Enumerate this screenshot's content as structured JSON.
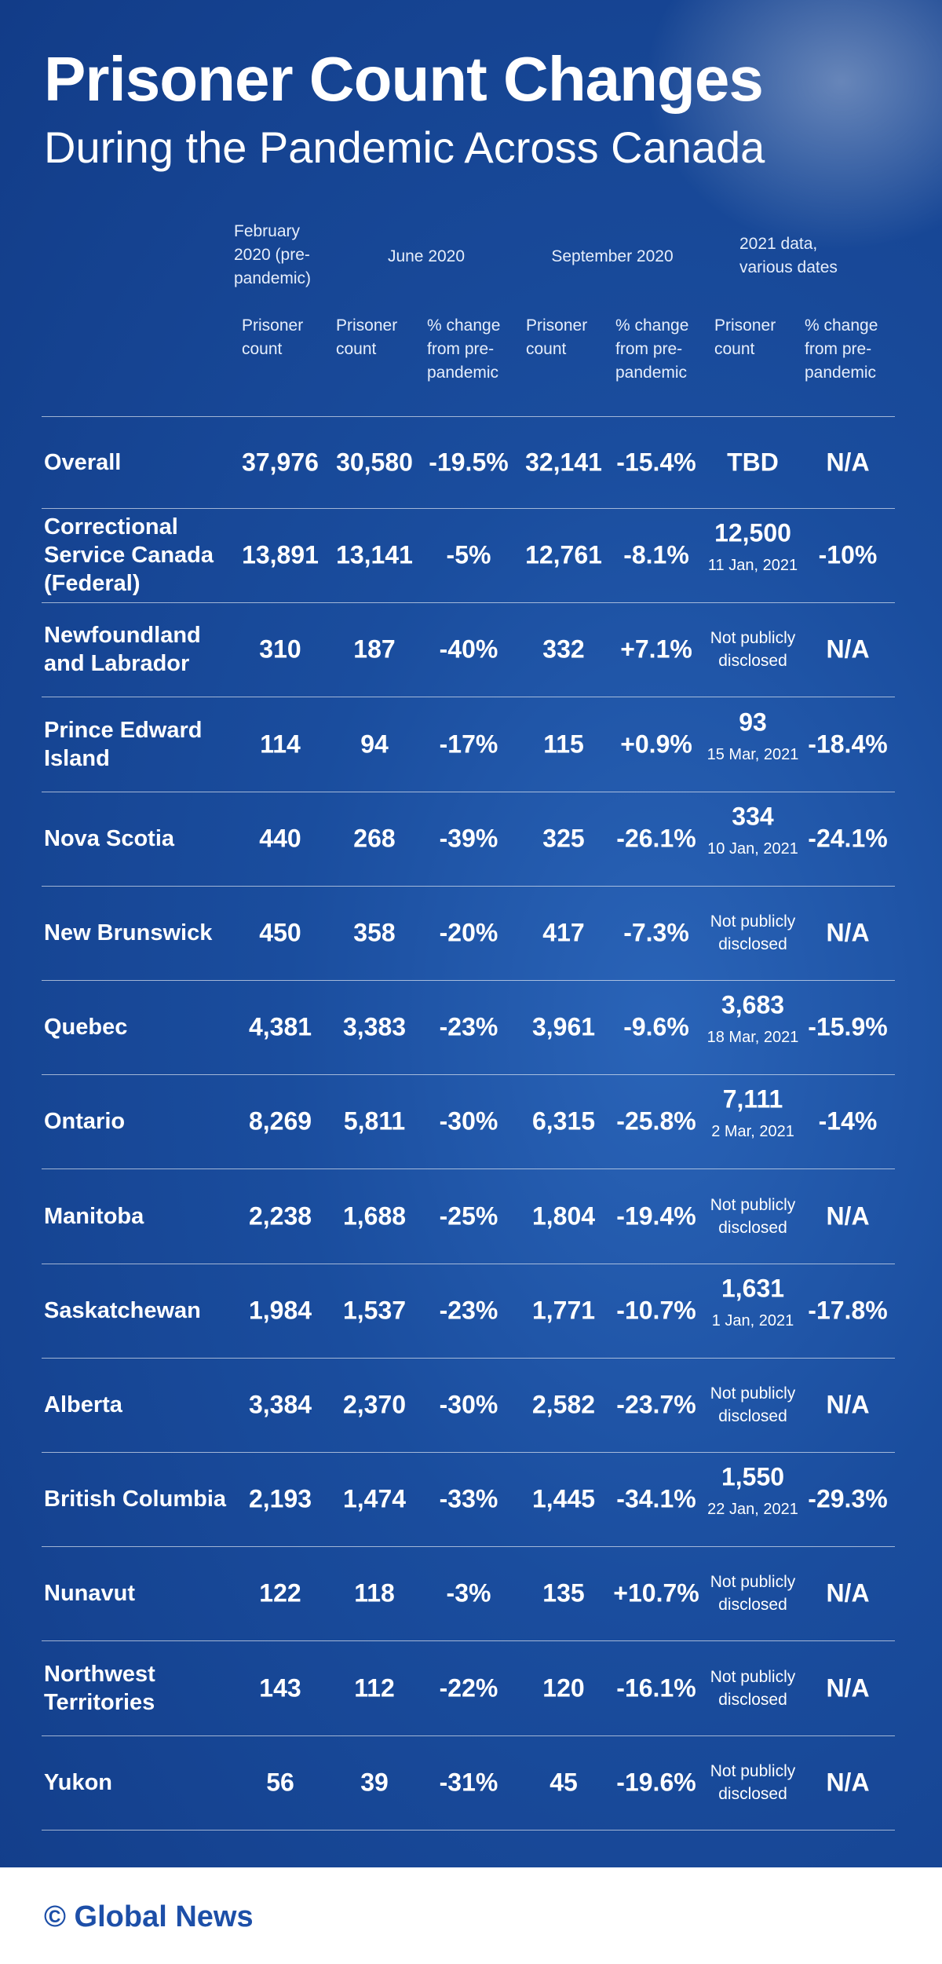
{
  "header": {
    "title": "Prisoner Count Changes",
    "subtitle": "During the Pandemic Across Canada"
  },
  "table": {
    "column_groups": [
      "February 2020 (pre-pandemic)",
      "June 2020",
      "September 2020",
      "2021 data, various dates"
    ],
    "column_headers": [
      "Prisoner count",
      "Prisoner count",
      "% change from pre-pandemic",
      "Prisoner count",
      "% change from pre-pandemic",
      "Prisoner count",
      "% change from pre-pandemic"
    ],
    "rows": [
      {
        "label": "Overall",
        "cells": [
          "37,976",
          "30,580",
          "-19.5%",
          "32,141",
          "-15.4%",
          "TBD",
          "N/A"
        ]
      },
      {
        "label": "Correctional Service Canada (Federal)",
        "cells": [
          "13,891",
          "13,141",
          "-5%",
          "12,761",
          "-8.1%",
          "12,500",
          "-10%"
        ],
        "date_2021": "11 Jan, 2021"
      },
      {
        "label": "Newfoundland and Labrador",
        "cells": [
          "310",
          "187",
          "-40%",
          "332",
          "+7.1%",
          "Not publicly disclosed",
          "N/A"
        ]
      },
      {
        "label": "Prince Edward Island",
        "cells": [
          "114",
          "94",
          "-17%",
          "115",
          "+0.9%",
          "93",
          "-18.4%"
        ],
        "date_2021": "15 Mar, 2021"
      },
      {
        "label": "Nova Scotia",
        "cells": [
          "440",
          "268",
          "-39%",
          "325",
          "-26.1%",
          "334",
          "-24.1%"
        ],
        "date_2021": "10 Jan, 2021"
      },
      {
        "label": "New Brunswick",
        "cells": [
          "450",
          "358",
          "-20%",
          "417",
          "-7.3%",
          "Not publicly disclosed",
          "N/A"
        ]
      },
      {
        "label": "Quebec",
        "cells": [
          "4,381",
          "3,383",
          "-23%",
          "3,961",
          "-9.6%",
          "3,683",
          "-15.9%"
        ],
        "date_2021": "18 Mar, 2021"
      },
      {
        "label": "Ontario",
        "cells": [
          "8,269",
          "5,811",
          "-30%",
          "6,315",
          "-25.8%",
          "7,111",
          "-14%"
        ],
        "date_2021": "2 Mar, 2021"
      },
      {
        "label": "Manitoba",
        "cells": [
          "2,238",
          "1,688",
          "-25%",
          "1,804",
          "-19.4%",
          "Not publicly disclosed",
          "N/A"
        ]
      },
      {
        "label": "Saskatchewan",
        "cells": [
          "1,984",
          "1,537",
          "-23%",
          "1,771",
          "-10.7%",
          "1,631",
          "-17.8%"
        ],
        "date_2021": "1 Jan, 2021"
      },
      {
        "label": "Alberta",
        "cells": [
          "3,384",
          "2,370",
          "-30%",
          "2,582",
          "-23.7%",
          "Not publicly disclosed",
          "N/A"
        ]
      },
      {
        "label": "British Columbia",
        "cells": [
          "2,193",
          "1,474",
          "-33%",
          "1,445",
          "-34.1%",
          "1,550",
          "-29.3%"
        ],
        "date_2021": "22 Jan, 2021"
      },
      {
        "label": "Nunavut",
        "cells": [
          "122",
          "118",
          "-3%",
          "135",
          "+10.7%",
          "Not publicly disclosed",
          "N/A"
        ]
      },
      {
        "label": "Northwest Territories",
        "cells": [
          "143",
          "112",
          "-22%",
          "120",
          "-16.1%",
          "Not publicly disclosed",
          "N/A"
        ]
      },
      {
        "label": "Yukon",
        "cells": [
          "56",
          "39",
          "-31%",
          "45",
          "-19.6%",
          "Not publicly disclosed",
          "N/A"
        ]
      }
    ]
  },
  "footer": {
    "credit": "© Global News"
  }
}
